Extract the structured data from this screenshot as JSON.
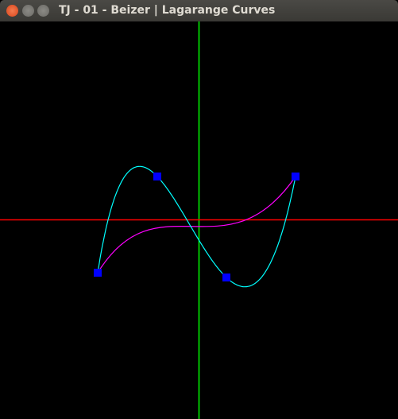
{
  "window": {
    "title": "TJ - 01 - Beizer | Lagarange Curves"
  }
}
